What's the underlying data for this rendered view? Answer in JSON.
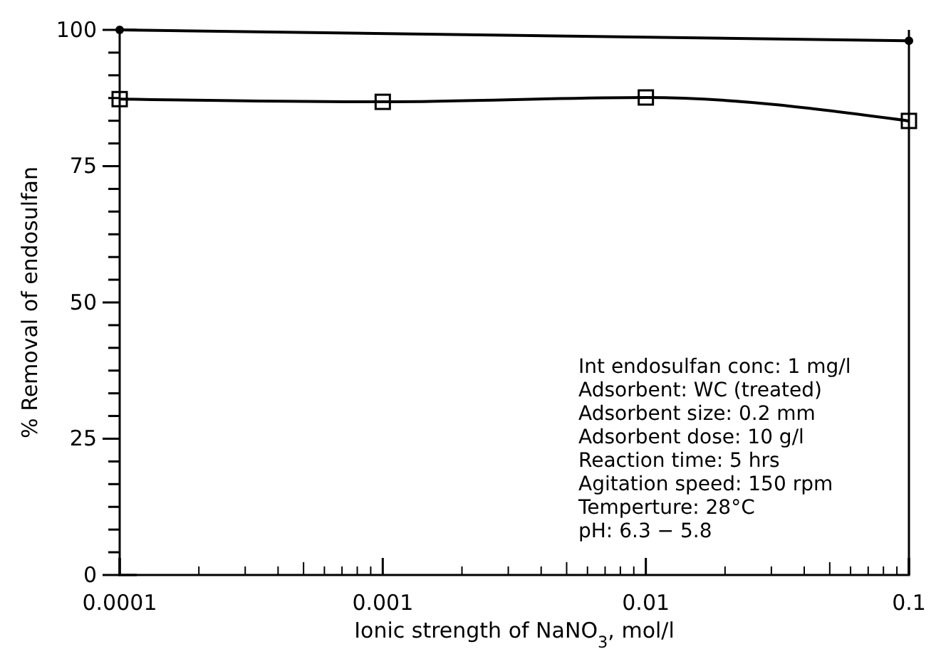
{
  "chart_data": {
    "type": "line",
    "xlabel": "Ionic strength of NaNO$_{3}$, mol/l",
    "ylabel": "% Removal of endosulfan",
    "log": "x",
    "xlim": [
      0.0001,
      0.1
    ],
    "xticks": [
      0.0001,
      0.001,
      0.01,
      0.1
    ],
    "ylim": [
      0,
      100
    ],
    "yticks": [
      0,
      {
        "value": 4.17,
        "label": null
      },
      {
        "value": 8.33,
        "label": null
      },
      {
        "value": 12.5,
        "label": null
      },
      {
        "value": 16.67,
        "label": null
      },
      {
        "value": 20.83,
        "label": null
      },
      25,
      {
        "value": 29.17,
        "label": null
      },
      {
        "value": 33.33,
        "label": null
      },
      {
        "value": 37.5,
        "label": null
      },
      {
        "value": 41.67,
        "label": null
      },
      {
        "value": 45.83,
        "label": null
      },
      50,
      {
        "value": 54.17,
        "label": null
      },
      {
        "value": 58.33,
        "label": null
      },
      {
        "value": 62.5,
        "label": null
      },
      {
        "value": 66.67,
        "label": null
      },
      {
        "value": 70.83,
        "label": null
      },
      75,
      {
        "value": 79.17,
        "label": null
      },
      {
        "value": 83.33,
        "label": null
      },
      {
        "value": 87.5,
        "label": null
      },
      {
        "value": 91.67,
        "label": null
      },
      {
        "value": 95.83,
        "label": null
      },
      100
    ],
    "grid": false,
    "series": [
      {
        "color": "#000000",
        "marker": "square",
        "x": [
          0.0001,
          0.001,
          0.01,
          0.1
        ],
        "values": [
          87.3,
          86.8,
          87.6,
          83.3
        ]
      },
      {
        "color": "#000000",
        "marker": "circle",
        "x": [
          0.0001,
          0.1
        ],
        "values": [
          100,
          98.0
        ]
      }
    ],
    "annotations": [
      "Int endosulfan conc: 1 mg/l",
      "Adsorbent: WC (treated)",
      "Adsorbent size: 0.2 mm",
      "Adsorbent dose: 10 g/l",
      "Reaction time: 5 hrs",
      "Agitation speed: 150 rpm",
      "Temperture: 28°C",
      "pH: 6.3 − 5.8"
    ]
  }
}
